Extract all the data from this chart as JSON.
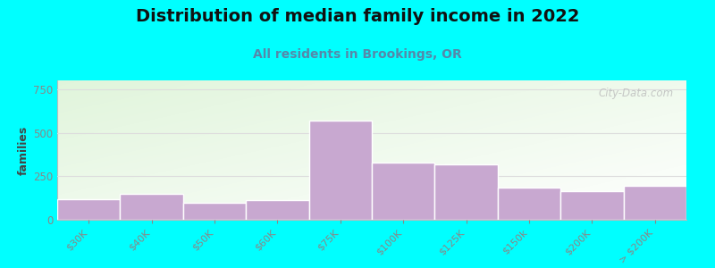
{
  "title": "Distribution of median family income in 2022",
  "subtitle": "All residents in Brookings, OR",
  "ylabel": "families",
  "categories": [
    "$30K",
    "$40K",
    "$50K",
    "$60K",
    "$75K",
    "$100K",
    "$125K",
    "$150k",
    "$200K",
    "> $200K"
  ],
  "values": [
    120,
    150,
    95,
    115,
    570,
    330,
    320,
    185,
    165,
    195
  ],
  "bar_color": "#C8A8D0",
  "bar_edgecolor": "#ffffff",
  "ylim": [
    0,
    800
  ],
  "yticks": [
    0,
    250,
    500,
    750
  ],
  "background_color": "#00FFFF",
  "title_fontsize": 14,
  "subtitle_fontsize": 10,
  "subtitle_color": "#5588aa",
  "watermark": "City-Data.com",
  "grid_color": "#dddddd",
  "tick_color": "#888888"
}
